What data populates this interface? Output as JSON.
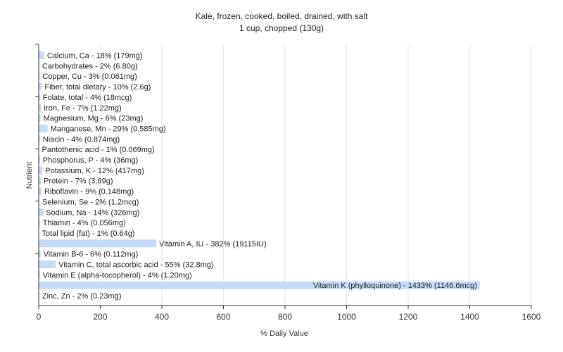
{
  "chart_data": {
    "type": "bar",
    "orientation": "horizontal",
    "title": "Kale, frozen, cooked, boiled, drained, with salt",
    "subtitle": "1 cup, chopped (130g)",
    "xlabel": "% Daily Value",
    "ylabel": "Nutrient",
    "xlim": [
      0,
      1600
    ],
    "xticks": [
      "0",
      "200",
      "400",
      "600",
      "800",
      "1000",
      "1200",
      "1400",
      "1600"
    ],
    "grid": true,
    "bar_color": "#c6dbf7",
    "categories": [
      "Calcium, Ca - 18% (179mg)",
      "Carbohydrates - 2% (6.80g)",
      "Copper, Cu - 3% (0.061mg)",
      "Fiber, total dietary - 10% (2.6g)",
      "Folate, total - 4% (18mcg)",
      "Iron, Fe - 7% (1.22mg)",
      "Magnesium, Mg - 6% (23mg)",
      "Manganese, Mn - 29% (0.585mg)",
      "Niacin - 4% (0.874mg)",
      "Pantothenic acid - 1% (0.069mg)",
      "Phosphorus, P - 4% (36mg)",
      "Potassium, K - 12% (417mg)",
      "Protein - 7% (3.69g)",
      "Riboflavin - 9% (0.148mg)",
      "Selenium, Se - 2% (1.2mcg)",
      "Sodium, Na - 14% (326mg)",
      "Thiamin - 4% (0.056mg)",
      "Total lipid (fat) - 1% (0.64g)",
      "Vitamin A, IU - 382% (19115IU)",
      "Vitamin B-6 - 6% (0.112mg)",
      "Vitamin C, total ascorbic acid - 55% (32.8mg)",
      "Vitamin E (alpha-tocopherol) - 4% (1.20mg)",
      "Vitamin K (phylloquinone) - 1433% (1146.6mcg)",
      "Zinc, Zn - 2% (0.23mg)"
    ],
    "values": [
      18,
      2,
      3,
      10,
      4,
      7,
      6,
      29,
      4,
      1,
      4,
      12,
      7,
      9,
      2,
      14,
      4,
      1,
      382,
      6,
      55,
      4,
      1433,
      2
    ]
  }
}
